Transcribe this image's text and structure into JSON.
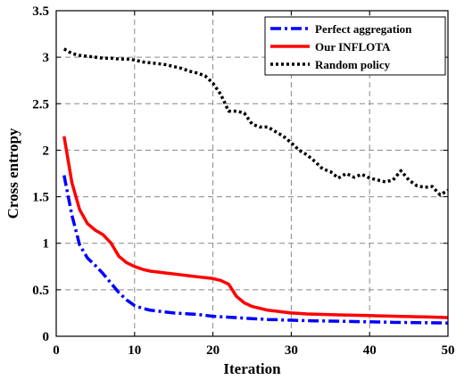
{
  "chart_data": {
    "type": "line",
    "xlabel": "Iteration",
    "ylabel": "Cross entropy",
    "xlim": [
      0,
      50
    ],
    "ylim": [
      0,
      3.5
    ],
    "xticks": [
      0,
      10,
      20,
      30,
      40,
      50
    ],
    "yticks": [
      0,
      0.5,
      1,
      1.5,
      2,
      2.5,
      3,
      3.5
    ],
    "xtick_labels": [
      "0",
      "10",
      "20",
      "30",
      "40",
      "50"
    ],
    "ytick_labels": [
      "0",
      "0.5",
      "1",
      "1.5",
      "2",
      "2.5",
      "3",
      "3.5"
    ],
    "grid": true,
    "legend_position": "top-right",
    "series": [
      {
        "name": "Perfect aggregation",
        "color": "#0000ff",
        "style": "dashdot",
        "x": [
          1,
          2,
          3,
          4,
          5,
          6,
          7,
          8,
          9,
          10,
          11,
          12,
          13,
          14,
          15,
          16,
          17,
          18,
          19,
          20,
          21,
          22,
          23,
          24,
          25,
          26,
          27,
          28,
          29,
          30,
          31,
          32,
          33,
          34,
          35,
          36,
          37,
          38,
          39,
          40,
          41,
          42,
          43,
          44,
          45,
          46,
          47,
          48,
          49,
          50
        ],
        "y": [
          1.73,
          1.3,
          0.98,
          0.84,
          0.76,
          0.67,
          0.57,
          0.47,
          0.39,
          0.33,
          0.3,
          0.28,
          0.27,
          0.26,
          0.25,
          0.245,
          0.24,
          0.235,
          0.225,
          0.215,
          0.21,
          0.205,
          0.2,
          0.195,
          0.19,
          0.185,
          0.18,
          0.178,
          0.175,
          0.173,
          0.17,
          0.168,
          0.166,
          0.165,
          0.163,
          0.162,
          0.16,
          0.158,
          0.156,
          0.155,
          0.153,
          0.152,
          0.15,
          0.149,
          0.148,
          0.147,
          0.146,
          0.145,
          0.144,
          0.142
        ]
      },
      {
        "name": "Our INFLOTA",
        "color": "#ff0000",
        "style": "solid",
        "x": [
          1,
          2,
          3,
          4,
          5,
          6,
          7,
          8,
          9,
          10,
          11,
          12,
          13,
          14,
          15,
          16,
          17,
          18,
          19,
          20,
          21,
          22,
          23,
          24,
          25,
          26,
          27,
          28,
          29,
          30,
          31,
          32,
          33,
          34,
          35,
          36,
          37,
          38,
          39,
          40,
          41,
          42,
          43,
          44,
          45,
          46,
          47,
          48,
          49,
          50
        ],
        "y": [
          2.15,
          1.65,
          1.36,
          1.21,
          1.14,
          1.09,
          1.0,
          0.86,
          0.79,
          0.75,
          0.72,
          0.7,
          0.69,
          0.68,
          0.67,
          0.66,
          0.65,
          0.64,
          0.63,
          0.62,
          0.6,
          0.56,
          0.43,
          0.36,
          0.32,
          0.3,
          0.28,
          0.27,
          0.26,
          0.25,
          0.245,
          0.24,
          0.238,
          0.235,
          0.232,
          0.23,
          0.228,
          0.226,
          0.224,
          0.222,
          0.22,
          0.218,
          0.216,
          0.214,
          0.212,
          0.21,
          0.208,
          0.206,
          0.203,
          0.2
        ]
      },
      {
        "name": "Random policy",
        "color": "#000000",
        "style": "dotted",
        "x": [
          1,
          2,
          3,
          4,
          5,
          6,
          7,
          8,
          9,
          10,
          11,
          12,
          13,
          14,
          15,
          16,
          17,
          18,
          19,
          20,
          21,
          22,
          23,
          24,
          25,
          26,
          27,
          28,
          29,
          30,
          31,
          32,
          33,
          34,
          35,
          36,
          37,
          38,
          39,
          40,
          41,
          42,
          43,
          44,
          45,
          46,
          47,
          48,
          49,
          50
        ],
        "y": [
          3.09,
          3.04,
          3.02,
          3.01,
          3.0,
          2.99,
          2.99,
          2.98,
          2.98,
          2.97,
          2.95,
          2.94,
          2.93,
          2.92,
          2.9,
          2.88,
          2.85,
          2.83,
          2.8,
          2.72,
          2.6,
          2.42,
          2.42,
          2.4,
          2.28,
          2.25,
          2.25,
          2.2,
          2.15,
          2.08,
          2.0,
          1.95,
          1.88,
          1.8,
          1.77,
          1.7,
          1.75,
          1.71,
          1.74,
          1.7,
          1.68,
          1.66,
          1.68,
          1.78,
          1.68,
          1.62,
          1.6,
          1.61,
          1.52,
          1.57
        ]
      }
    ]
  }
}
